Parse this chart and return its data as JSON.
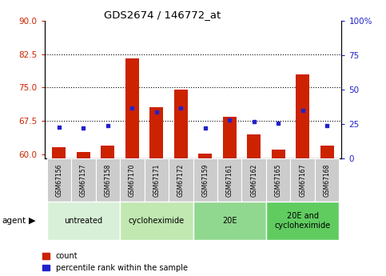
{
  "title": "GDS2674 / 146772_at",
  "samples": [
    "GSM67156",
    "GSM67157",
    "GSM67158",
    "GSM67170",
    "GSM67171",
    "GSM67172",
    "GSM67159",
    "GSM67161",
    "GSM67162",
    "GSM67165",
    "GSM67167",
    "GSM67168"
  ],
  "count_values": [
    61.5,
    60.5,
    62.0,
    81.5,
    70.5,
    74.5,
    60.2,
    68.5,
    64.5,
    61.0,
    78.0,
    62.0
  ],
  "percentile_values": [
    23,
    22,
    24,
    37,
    34,
    37,
    22,
    28,
    27,
    26,
    35,
    24
  ],
  "ylim_left": [
    59,
    90
  ],
  "ylim_right": [
    0,
    100
  ],
  "yticks_left": [
    60,
    67.5,
    75,
    82.5,
    90
  ],
  "yticks_right": [
    0,
    25,
    50,
    75,
    100
  ],
  "hlines": [
    67.5,
    75.0,
    82.5
  ],
  "groups": [
    {
      "label": "untreated",
      "start": 0,
      "end": 3,
      "color": "#d8f0d8"
    },
    {
      "label": "cycloheximide",
      "start": 3,
      "end": 6,
      "color": "#c0e8b0"
    },
    {
      "label": "20E",
      "start": 6,
      "end": 9,
      "color": "#90d890"
    },
    {
      "label": "20E and\ncycloheximide",
      "start": 9,
      "end": 12,
      "color": "#60cc60"
    }
  ],
  "bar_color": "#cc2200",
  "dot_color": "#2222cc",
  "bar_width": 0.55,
  "agent_label": "agent",
  "legend_count_label": "count",
  "legend_pct_label": "percentile rank within the sample",
  "tick_bg_color": "#cccccc",
  "left_axis_color": "#cc2200",
  "right_axis_color": "#2222cc",
  "figsize": [
    4.83,
    3.45
  ],
  "dpi": 100
}
